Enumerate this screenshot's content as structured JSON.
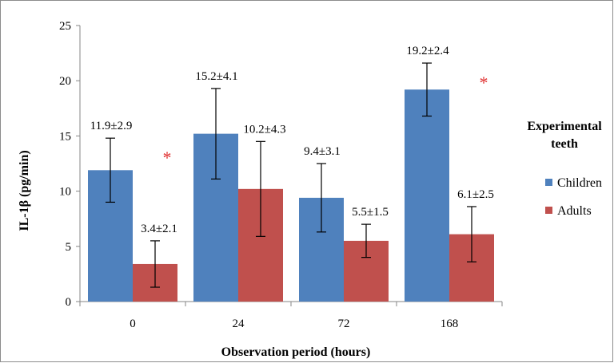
{
  "chart_data": {
    "type": "bar",
    "categories": [
      "0",
      "24",
      "72",
      "168"
    ],
    "series": [
      {
        "name": "Children",
        "color": "#4f81bd",
        "values": [
          11.9,
          15.2,
          9.4,
          19.2
        ],
        "errors": [
          2.9,
          4.1,
          3.1,
          2.4
        ],
        "labels": [
          "11.9±2.9",
          "15.2±4.1",
          "9.4±3.1",
          "19.2±2.4"
        ]
      },
      {
        "name": "Adults",
        "color": "#c0504d",
        "values": [
          3.4,
          10.2,
          5.5,
          6.1
        ],
        "errors": [
          2.1,
          4.3,
          1.5,
          2.5
        ],
        "labels": [
          "3.4±2.1",
          "10.2±4.3",
          "5.5±1.5",
          "6.1±2.5"
        ]
      }
    ],
    "xlabel": "Observation period (hours)",
    "ylabel": "IL-1β (pg/min)",
    "ylim": [
      0,
      25
    ],
    "yticks": [
      "0",
      "5",
      "10",
      "15",
      "20",
      "25"
    ],
    "legend": {
      "title_line1": "Experimental",
      "title_line2": "teeth",
      "placement": "right"
    },
    "annotations": [
      {
        "text": "*",
        "category": "0",
        "color": "#e03030"
      },
      {
        "text": "*",
        "category": "168",
        "color": "#e03030"
      }
    ],
    "grid": false
  }
}
